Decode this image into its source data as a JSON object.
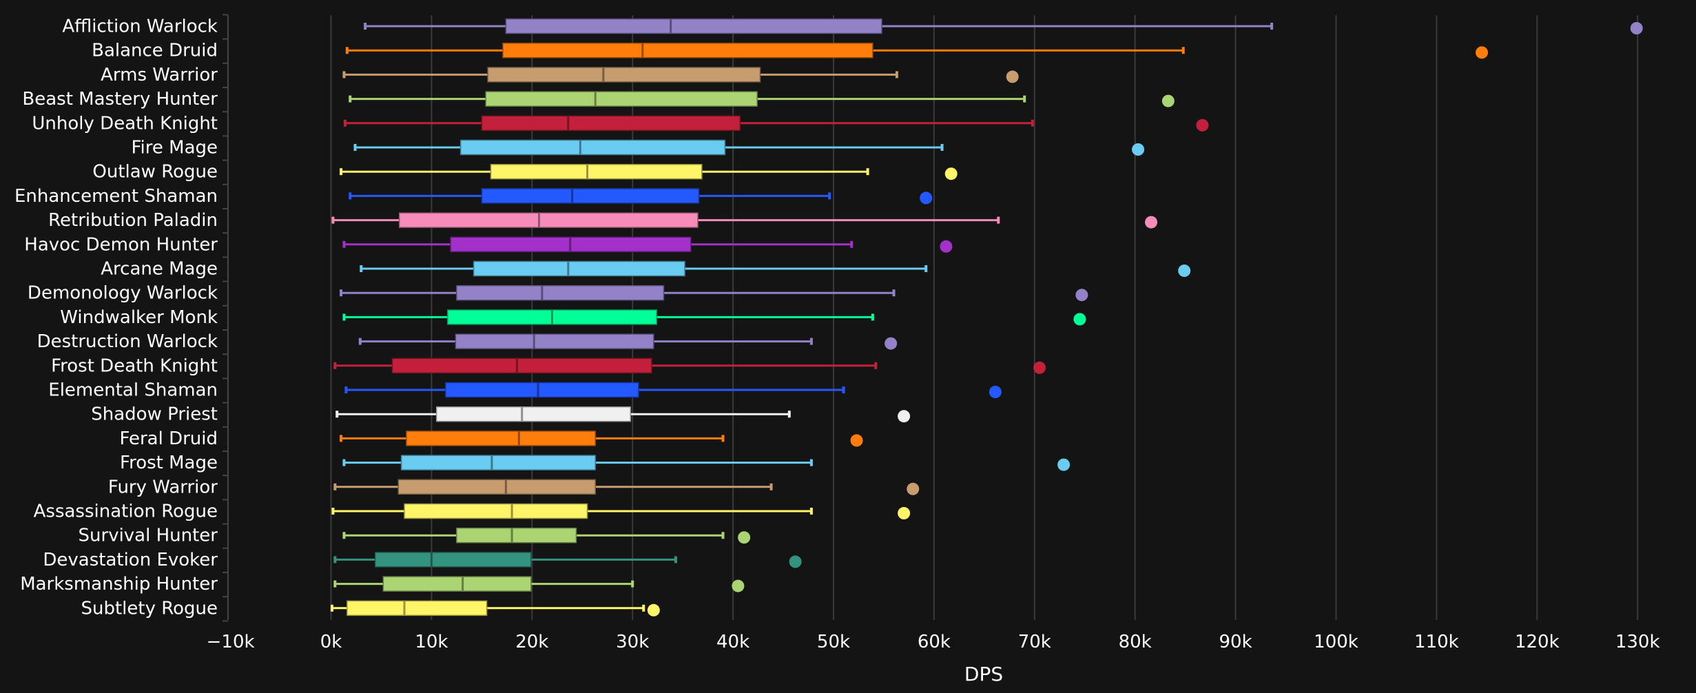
{
  "chart_data": {
    "type": "boxplot",
    "title": "",
    "xlabel": "DPS",
    "ylabel": "",
    "xlim": [
      -10000,
      132000
    ],
    "grid": true,
    "legend": "none",
    "x_ticks": [
      -10000,
      0,
      10000,
      20000,
      30000,
      40000,
      50000,
      60000,
      70000,
      80000,
      90000,
      100000,
      110000,
      120000,
      130000
    ],
    "x_tick_labels": [
      "−10k",
      "0k",
      "10k",
      "20k",
      "30k",
      "40k",
      "50k",
      "60k",
      "70k",
      "80k",
      "90k",
      "100k",
      "110k",
      "120k",
      "130k"
    ],
    "categories": [
      {
        "name": "Affliction Warlock",
        "color": "#9482c9",
        "min": 3400,
        "q1": 17400,
        "median": 33800,
        "q3": 54800,
        "max": 93600,
        "outlier": 129900
      },
      {
        "name": "Balance Druid",
        "color": "#ff7d0a",
        "min": 1600,
        "q1": 17100,
        "median": 31000,
        "q3": 53900,
        "max": 84800,
        "outlier": 114500
      },
      {
        "name": "Arms Warrior",
        "color": "#c79c6e",
        "min": 1300,
        "q1": 15600,
        "median": 27100,
        "q3": 42700,
        "max": 56300,
        "outlier": 67800
      },
      {
        "name": "Beast Mastery Hunter",
        "color": "#abd473",
        "min": 1900,
        "q1": 15400,
        "median": 26300,
        "q3": 42400,
        "max": 69000,
        "outlier": 83300
      },
      {
        "name": "Unholy Death Knight",
        "color": "#c41f3b",
        "min": 1400,
        "q1": 15000,
        "median": 23600,
        "q3": 40700,
        "max": 69800,
        "outlier": 86700
      },
      {
        "name": "Fire Mage",
        "color": "#69ccf0",
        "min": 2400,
        "q1": 12900,
        "median": 24800,
        "q3": 39200,
        "max": 60800,
        "outlier": 80300
      },
      {
        "name": "Outlaw Rogue",
        "color": "#fff569",
        "min": 1000,
        "q1": 15900,
        "median": 25500,
        "q3": 36900,
        "max": 53400,
        "outlier": 61700
      },
      {
        "name": "Enhancement Shaman",
        "color": "#2459ff",
        "min": 1900,
        "q1": 15000,
        "median": 24000,
        "q3": 36600,
        "max": 49600,
        "outlier": 59200
      },
      {
        "name": "Retribution Paladin",
        "color": "#f58cba",
        "min": 200,
        "q1": 6800,
        "median": 20700,
        "q3": 36500,
        "max": 66400,
        "outlier": 81600
      },
      {
        "name": "Havoc Demon Hunter",
        "color": "#a330c9",
        "min": 1300,
        "q1": 11900,
        "median": 23800,
        "q3": 35800,
        "max": 51800,
        "outlier": 61200
      },
      {
        "name": "Arcane Mage",
        "color": "#69ccf0",
        "min": 3000,
        "q1": 14200,
        "median": 23600,
        "q3": 35200,
        "max": 59200,
        "outlier": 84900
      },
      {
        "name": "Demonology Warlock",
        "color": "#9482c9",
        "min": 1000,
        "q1": 12500,
        "median": 21000,
        "q3": 33100,
        "max": 56000,
        "outlier": 74700
      },
      {
        "name": "Windwalker Monk",
        "color": "#00ff96",
        "min": 1300,
        "q1": 11600,
        "median": 22000,
        "q3": 32400,
        "max": 53900,
        "outlier": 74500
      },
      {
        "name": "Destruction Warlock",
        "color": "#9482c9",
        "min": 2900,
        "q1": 12400,
        "median": 20200,
        "q3": 32100,
        "max": 47800,
        "outlier": 55700
      },
      {
        "name": "Frost Death Knight",
        "color": "#c41f3b",
        "min": 400,
        "q1": 6100,
        "median": 18500,
        "q3": 31900,
        "max": 54200,
        "outlier": 70500
      },
      {
        "name": "Elemental Shaman",
        "color": "#2459ff",
        "min": 1500,
        "q1": 11400,
        "median": 20600,
        "q3": 30600,
        "max": 51000,
        "outlier": 66100
      },
      {
        "name": "Shadow Priest",
        "color": "#f0f0f0",
        "min": 600,
        "q1": 10500,
        "median": 19000,
        "q3": 29800,
        "max": 45600,
        "outlier": 57000
      },
      {
        "name": "Feral Druid",
        "color": "#ff7d0a",
        "min": 1000,
        "q1": 7500,
        "median": 18700,
        "q3": 26300,
        "max": 39000,
        "outlier": 52300
      },
      {
        "name": "Frost Mage",
        "color": "#69ccf0",
        "min": 1300,
        "q1": 7000,
        "median": 16000,
        "q3": 26300,
        "max": 47800,
        "outlier": 72900
      },
      {
        "name": "Fury Warrior",
        "color": "#c79c6e",
        "min": 400,
        "q1": 6700,
        "median": 17400,
        "q3": 26300,
        "max": 43800,
        "outlier": 57900
      },
      {
        "name": "Assassination Rogue",
        "color": "#fff569",
        "min": 200,
        "q1": 7300,
        "median": 18000,
        "q3": 25500,
        "max": 47800,
        "outlier": 57000
      },
      {
        "name": "Survival Hunter",
        "color": "#abd473",
        "min": 1300,
        "q1": 12500,
        "median": 18000,
        "q3": 24400,
        "max": 39000,
        "outlier": 41100
      },
      {
        "name": "Devastation Evoker",
        "color": "#33937f",
        "min": 400,
        "q1": 4400,
        "median": 10000,
        "q3": 19900,
        "max": 34300,
        "outlier": 46200
      },
      {
        "name": "Marksmanship Hunter",
        "color": "#abd473",
        "min": 400,
        "q1": 5200,
        "median": 13100,
        "q3": 19900,
        "max": 30000,
        "outlier": 40500
      },
      {
        "name": "Subtlety Rogue",
        "color": "#fff569",
        "min": 100,
        "q1": 1600,
        "median": 7300,
        "q3": 15500,
        "max": 31100,
        "outlier": 32100
      }
    ]
  }
}
